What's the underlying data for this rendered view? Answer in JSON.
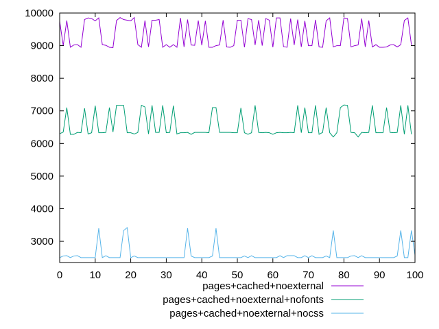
{
  "chart_data": {
    "type": "line",
    "title": "",
    "xlabel": "",
    "ylabel": "",
    "xlim": [
      0,
      100
    ],
    "ylim": [
      2350,
      10000
    ],
    "xticks": [
      0,
      10,
      20,
      30,
      40,
      50,
      60,
      70,
      80,
      90,
      100
    ],
    "yticks": [
      3000,
      4000,
      5000,
      6000,
      7000,
      8000,
      9000,
      10000
    ],
    "xtick_labels": [
      "0",
      "10",
      "20",
      "30",
      "40",
      "50",
      "60",
      "70",
      "80",
      "90",
      "100"
    ],
    "ytick_labels": [
      "3000",
      "4000",
      "5000",
      "6000",
      "7000",
      "8000",
      "9000",
      "10000"
    ],
    "grid": false,
    "legend_position": "bottom-center",
    "series": [
      {
        "name": "pages+cached+noexternal",
        "color": "#9400d3",
        "values": [
          9750,
          9000,
          9770,
          8950,
          9020,
          9030,
          8950,
          9800,
          9850,
          9830,
          9760,
          9850,
          9030,
          9010,
          8950,
          8940,
          9770,
          9860,
          9800,
          9780,
          9760,
          9860,
          9030,
          8950,
          9770,
          8960,
          9780,
          9780,
          9800,
          8950,
          9030,
          8950,
          9030,
          8950,
          9850,
          8960,
          9800,
          9020,
          9010,
          9770,
          9010,
          9760,
          8950,
          8950,
          9000,
          9020,
          9780,
          8960,
          8950,
          9000,
          9780,
          9780,
          8950,
          9830,
          9800,
          9020,
          9780,
          9000,
          9830,
          9780,
          8950,
          9850,
          9850,
          8970,
          8950,
          9830,
          9020,
          9800,
          8960,
          9760,
          9000,
          9000,
          9790,
          8960,
          8950,
          9760,
          9850,
          8960,
          9000,
          9000,
          9850,
          9830,
          8960,
          9000,
          9020,
          9830,
          8960,
          9770,
          8960,
          9030,
          8950,
          8950,
          8960,
          9020,
          9030,
          8960,
          9030,
          9770,
          9850,
          9020
        ]
      },
      {
        "name": "pages+cached+noexternal+nofonts",
        "color": "#009e73",
        "values": [
          6300,
          6350,
          7100,
          6280,
          6280,
          6340,
          6330,
          7080,
          6290,
          6330,
          7160,
          6330,
          6330,
          6340,
          7100,
          6350,
          7170,
          7170,
          7170,
          6330,
          6330,
          6290,
          6340,
          7170,
          7120,
          6290,
          7170,
          6340,
          6340,
          7170,
          6330,
          6340,
          7160,
          6290,
          6330,
          6330,
          6340,
          6280,
          6340,
          6340,
          6340,
          6340,
          6330,
          7100,
          7100,
          6340,
          6340,
          6340,
          6340,
          6330,
          6330,
          7090,
          6330,
          6280,
          6330,
          7170,
          6340,
          6330,
          6340,
          6330,
          6280,
          6330,
          6340,
          6330,
          6330,
          6340,
          6330,
          7170,
          6330,
          7100,
          6330,
          6330,
          7170,
          6280,
          6340,
          7100,
          6330,
          6200,
          6330,
          7100,
          7180,
          7170,
          6340,
          6330,
          6200,
          6340,
          6330,
          6340,
          7170,
          6330,
          6330,
          6330,
          7100,
          6340,
          6330,
          6340,
          7170,
          6280,
          7170,
          6280
        ]
      },
      {
        "name": "pages+cached+noexternal+nocss",
        "color": "#56b4e9",
        "values": [
          2500,
          2550,
          2560,
          2500,
          2550,
          2560,
          2500,
          2500,
          2500,
          2500,
          2500,
          3400,
          2500,
          2560,
          2500,
          2500,
          2500,
          2500,
          3330,
          3420,
          2500,
          2550,
          2500,
          2500,
          2500,
          2500,
          2500,
          2500,
          2500,
          2500,
          2500,
          2500,
          2500,
          2500,
          2500,
          2500,
          3400,
          2550,
          2500,
          2500,
          2500,
          2500,
          2500,
          2550,
          3400,
          2500,
          2500,
          2500,
          2500,
          2500,
          2500,
          2500,
          2550,
          2500,
          2560,
          2500,
          2500,
          2500,
          2500,
          2500,
          2500,
          2500,
          2560,
          2500,
          2560,
          2560,
          2560,
          2500,
          2500,
          2560,
          2500,
          2560,
          2500,
          2500,
          2500,
          2550,
          2500,
          3330,
          2500,
          2500,
          2500,
          2500,
          2550,
          2560,
          2500,
          2560,
          2500,
          2500,
          2500,
          2500,
          2500,
          2500,
          2500,
          2500,
          2500,
          2550,
          3330,
          2500,
          2500,
          3330,
          2580
        ]
      }
    ]
  }
}
